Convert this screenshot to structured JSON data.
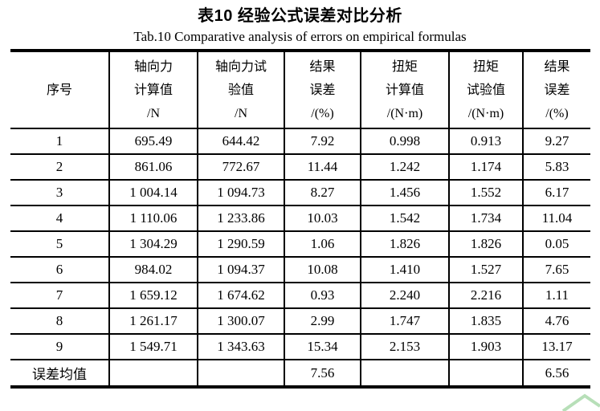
{
  "caption": {
    "zh": "表10  经验公式误差对比分析",
    "en": "Tab.10 Comparative analysis of errors on empirical formulas"
  },
  "table": {
    "headers": [
      {
        "lines": [
          "序号"
        ]
      },
      {
        "lines": [
          "轴向力",
          "计算值",
          "/N"
        ]
      },
      {
        "lines": [
          "轴向力试",
          "验值",
          "/N"
        ]
      },
      {
        "lines": [
          "结果",
          "误差",
          "/(%)"
        ]
      },
      {
        "lines": [
          "扭矩",
          "计算值",
          "/(N·m)"
        ]
      },
      {
        "lines": [
          "扭矩",
          "试验值",
          "/(N·m)"
        ]
      },
      {
        "lines": [
          "结果",
          "误差",
          "/(%)"
        ]
      }
    ],
    "rows": [
      [
        "1",
        "695.49",
        "644.42",
        "7.92",
        "0.998",
        "0.913",
        "9.27"
      ],
      [
        "2",
        "861.06",
        "772.67",
        "11.44",
        "1.242",
        "1.174",
        "5.83"
      ],
      [
        "3",
        "1 004.14",
        "1 094.73",
        "8.27",
        "1.456",
        "1.552",
        "6.17"
      ],
      [
        "4",
        "1 110.06",
        "1 233.86",
        "10.03",
        "1.542",
        "1.734",
        "11.04"
      ],
      [
        "5",
        "1 304.29",
        "1 290.59",
        "1.06",
        "1.826",
        "1.826",
        "0.05"
      ],
      [
        "6",
        "984.02",
        "1 094.37",
        "10.08",
        "1.410",
        "1.527",
        "7.65"
      ],
      [
        "7",
        "1 659.12",
        "1 674.62",
        "0.93",
        "2.240",
        "2.216",
        "1.11"
      ],
      [
        "8",
        "1 261.17",
        "1 300.07",
        "2.99",
        "1.747",
        "1.835",
        "4.76"
      ],
      [
        "9",
        "1 549.71",
        "1 343.63",
        "15.34",
        "2.153",
        "1.903",
        "13.17"
      ]
    ],
    "footer": [
      "误差均值",
      "",
      "",
      "7.56",
      "",
      "",
      "6.56"
    ]
  },
  "colors": {
    "text": "#000000",
    "background": "#ffffff",
    "rule": "#000000",
    "corner_artifact": "#9fd4a0"
  }
}
